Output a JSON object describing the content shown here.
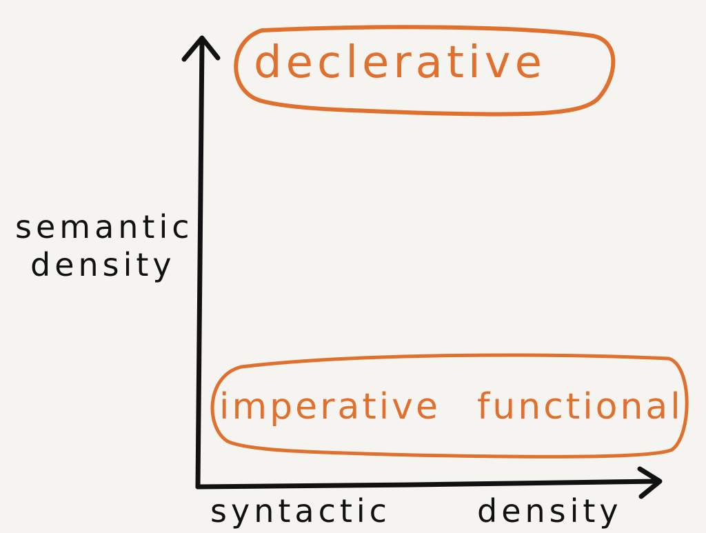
{
  "diagram": {
    "axes": {
      "y_label_line1": "semantic",
      "y_label_line2": "density",
      "x_label_part1": "syntactic",
      "x_label_part2": "density"
    },
    "groups": {
      "top": {
        "items": [
          "declerative"
        ]
      },
      "bottom": {
        "items": [
          "imperative",
          "functional"
        ]
      }
    },
    "colors": {
      "background": "#f6f4f1",
      "axis": "#111111",
      "accent": "#e0702e"
    }
  }
}
